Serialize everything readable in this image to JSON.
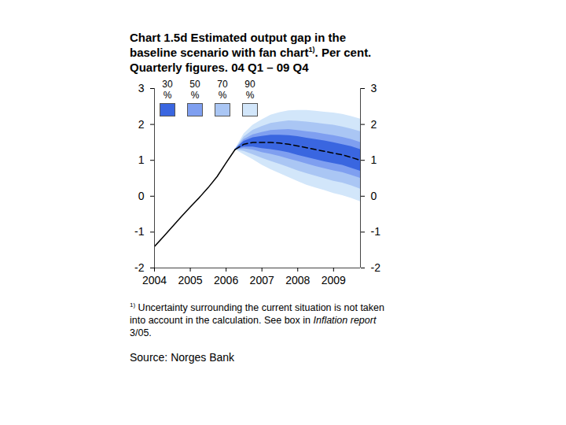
{
  "chart_data": {
    "type": "line",
    "title": "Chart 1.5d Estimated output gap in the baseline scenario with fan chart",
    "title_mark": "1)",
    "title_end": ". Per cent. Quarterly figures. 04 Q1 – 09 Q4",
    "note": {
      "mark": "1)",
      "text": "Uncertainty surrounding the current situation is not taken into account in the calculation. See box in ",
      "italic": "Inflation report",
      "end": " 3/05."
    },
    "source": "Source: Norges Bank",
    "x": [
      2004,
      2004.25,
      2004.5,
      2004.75,
      2005,
      2005.25,
      2005.5,
      2005.75,
      2006,
      2006.25,
      2006.5,
      2006.75,
      2007,
      2007.25,
      2007.5,
      2007.75,
      2008,
      2008.25,
      2008.5,
      2008.75,
      2009,
      2009.25,
      2009.5,
      2009.75
    ],
    "xlim": [
      2004,
      2009.75
    ],
    "xticks": [
      2004,
      2005,
      2006,
      2007,
      2008,
      2009
    ],
    "ylim": [
      -2,
      3
    ],
    "yticks": [
      -2,
      -1,
      0,
      1,
      2,
      3
    ],
    "grid": false,
    "legend": "top-left",
    "series": [
      {
        "color": "#000000",
        "line_style": "solid",
        "values": [
          -1.4,
          -1.13,
          -0.85,
          -0.57,
          -0.3,
          -0.04,
          0.24,
          0.55,
          0.93,
          1.3,
          null,
          null,
          null,
          null,
          null,
          null,
          null,
          null,
          null,
          null,
          null,
          null,
          null,
          null
        ]
      },
      {
        "color": "#000000",
        "line_style": "dashed",
        "values": [
          null,
          null,
          null,
          null,
          null,
          null,
          null,
          null,
          null,
          1.3,
          1.45,
          1.5,
          1.5,
          1.5,
          1.48,
          1.45,
          1.4,
          1.35,
          1.3,
          1.25,
          1.2,
          1.15,
          1.08,
          1.0
        ]
      }
    ],
    "bands": [
      {
        "name": "30 %",
        "color": "#3a66e0",
        "lower": [
          null,
          null,
          null,
          null,
          null,
          null,
          null,
          null,
          null,
          1.3,
          1.37,
          1.37,
          1.33,
          1.3,
          1.26,
          1.21,
          1.14,
          1.08,
          1.02,
          0.96,
          0.91,
          0.86,
          0.78,
          0.7
        ],
        "upper": [
          null,
          null,
          null,
          null,
          null,
          null,
          null,
          null,
          null,
          1.3,
          1.53,
          1.63,
          1.67,
          1.7,
          1.7,
          1.69,
          1.66,
          1.62,
          1.58,
          1.54,
          1.49,
          1.44,
          1.38,
          1.3
        ]
      },
      {
        "name": "50 %",
        "color": "#7f9ff0",
        "lower": [
          null,
          null,
          null,
          null,
          null,
          null,
          null,
          null,
          null,
          1.3,
          1.32,
          1.29,
          1.22,
          1.17,
          1.11,
          1.04,
          0.97,
          0.9,
          0.83,
          0.77,
          0.71,
          0.66,
          0.58,
          0.5
        ],
        "upper": [
          null,
          null,
          null,
          null,
          null,
          null,
          null,
          null,
          null,
          1.3,
          1.58,
          1.71,
          1.78,
          1.83,
          1.85,
          1.86,
          1.83,
          1.8,
          1.77,
          1.73,
          1.69,
          1.64,
          1.58,
          1.5
        ]
      },
      {
        "name": "70 %",
        "color": "#aac6f4",
        "lower": [
          null,
          null,
          null,
          null,
          null,
          null,
          null,
          null,
          null,
          1.3,
          1.25,
          1.16,
          1.06,
          0.97,
          0.89,
          0.8,
          0.71,
          0.63,
          0.56,
          0.49,
          0.42,
          0.37,
          0.29,
          0.2
        ],
        "upper": [
          null,
          null,
          null,
          null,
          null,
          null,
          null,
          null,
          null,
          1.3,
          1.65,
          1.84,
          1.94,
          2.03,
          2.07,
          2.1,
          2.09,
          2.07,
          2.04,
          2.01,
          1.98,
          1.93,
          1.87,
          1.8
        ]
      },
      {
        "name": "90 %",
        "color": "#d2e6fa",
        "lower": [
          null,
          null,
          null,
          null,
          null,
          null,
          null,
          null,
          null,
          1.3,
          1.16,
          1.02,
          0.87,
          0.74,
          0.63,
          0.52,
          0.41,
          0.31,
          0.23,
          0.16,
          0.08,
          0.02,
          -0.06,
          -0.15
        ],
        "upper": [
          null,
          null,
          null,
          null,
          null,
          null,
          null,
          null,
          null,
          1.3,
          1.74,
          1.98,
          2.13,
          2.26,
          2.33,
          2.38,
          2.39,
          2.39,
          2.37,
          2.34,
          2.32,
          2.28,
          2.22,
          2.15
        ]
      }
    ]
  }
}
